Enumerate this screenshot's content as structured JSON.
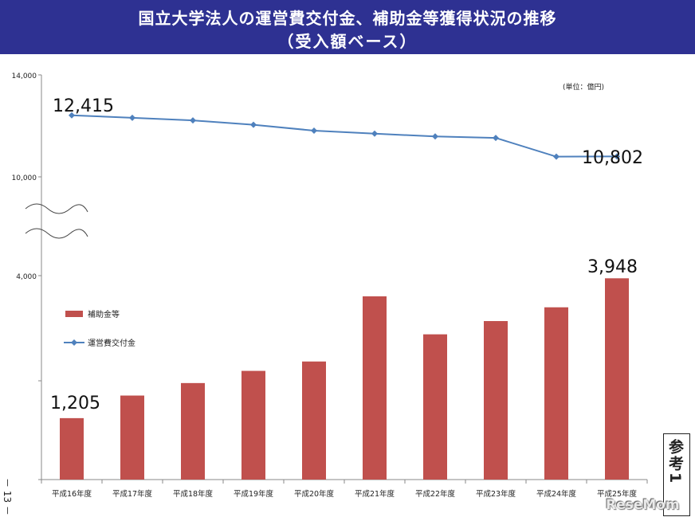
{
  "header": {
    "title_line1": "国立大学法人の運営費交付金、補助金等獲得状況の推移",
    "title_line2": "（受入額ベース）"
  },
  "unit_note": "(単位：億円)",
  "page_number": "－ 13 －",
  "ref_badge": "参考1",
  "watermark": "ReseMom",
  "colors": {
    "header_bg": "#2e3192",
    "bar": "#c0504d",
    "line": "#4f81bd"
  },
  "chart_data": {
    "type": "bar+line",
    "categories": [
      "平成16年度",
      "平成17年度",
      "平成18年度",
      "平成19年度",
      "平成20年度",
      "平成21年度",
      "平成22年度",
      "平成23年度",
      "平成24年度",
      "平成25年度"
    ],
    "y_ticks": [
      "14,000",
      "10,000",
      "4,000"
    ],
    "axis_break": true,
    "legend_position": "left-middle",
    "series": [
      {
        "name": "運営費交付金",
        "type": "line",
        "values": [
          12415,
          12317,
          12214,
          12044,
          11813,
          11695,
          11585,
          11528,
          10792,
          10802
        ],
        "annotations": [
          "12,415",
          "10,802"
        ]
      },
      {
        "name": "補助金等",
        "type": "bar",
        "values": [
          1205,
          1648,
          1893,
          2132,
          2316,
          3594,
          2849,
          3109,
          3379,
          3948
        ],
        "annotations": [
          "1,205",
          "3,948"
        ]
      }
    ]
  }
}
